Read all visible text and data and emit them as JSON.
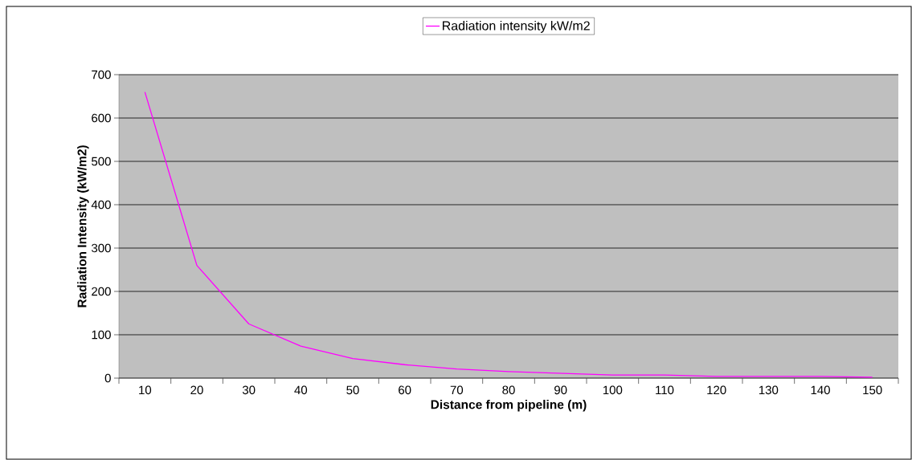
{
  "chart_data": {
    "type": "line",
    "xlabel": "Distance from pipeline (m)",
    "ylabel": "Radiation Intensity (kW/m2)",
    "categories": [
      "10",
      "20",
      "30",
      "40",
      "50",
      "60",
      "70",
      "80",
      "90",
      "100",
      "110",
      "120",
      "130",
      "140",
      "150"
    ],
    "series": [
      {
        "name": "Radiation intensity  kW/m2",
        "color": "#ff00ff",
        "values": [
          660,
          260,
          125,
          74,
          45,
          31,
          21,
          15,
          11,
          7,
          7,
          4,
          4,
          4,
          2
        ]
      }
    ],
    "ylim": [
      0,
      700
    ],
    "yticks": [
      0,
      100,
      200,
      300,
      400,
      500,
      600,
      700
    ],
    "grid": "y",
    "legend": "top",
    "marker": "none",
    "line_style": "solid"
  }
}
